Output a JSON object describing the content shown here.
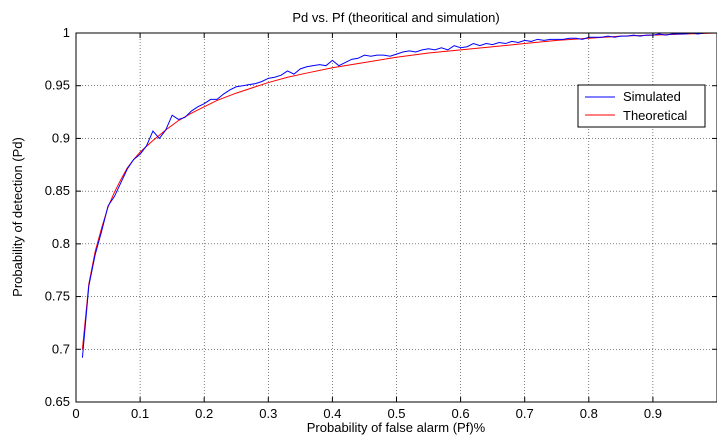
{
  "chart_data": {
    "type": "line",
    "title": "Pd vs. Pf (theoritical and simulation)",
    "xlabel": "Probability of false alarm (Pf)%",
    "ylabel": "Probability of detection (Pd)",
    "xlim": [
      0,
      1
    ],
    "ylim": [
      0.65,
      1
    ],
    "xticks": [
      0,
      0.1,
      0.2,
      0.3,
      0.4,
      0.5,
      0.6,
      0.7,
      0.8,
      0.9
    ],
    "xtick_labels": [
      "0",
      "0.1",
      "0.2",
      "0.3",
      "0.4",
      "0.5",
      "0.6",
      "0.7",
      "0.8",
      "0.9"
    ],
    "yticks": [
      0.65,
      0.7,
      0.75,
      0.8,
      0.85,
      0.9,
      0.95,
      1
    ],
    "ytick_labels": [
      "0.65",
      "0.7",
      "0.75",
      "0.8",
      "0.85",
      "0.9",
      "0.95",
      "1"
    ],
    "grid": true,
    "legend_position": "right",
    "series": [
      {
        "name": "Simulated",
        "color": "#0000ff",
        "x": [
          0.01,
          0.02,
          0.03,
          0.04,
          0.05,
          0.06,
          0.07,
          0.08,
          0.09,
          0.1,
          0.11,
          0.12,
          0.13,
          0.14,
          0.15,
          0.16,
          0.17,
          0.18,
          0.19,
          0.2,
          0.21,
          0.22,
          0.23,
          0.24,
          0.25,
          0.26,
          0.27,
          0.28,
          0.29,
          0.3,
          0.31,
          0.32,
          0.33,
          0.34,
          0.35,
          0.36,
          0.37,
          0.38,
          0.39,
          0.4,
          0.41,
          0.42,
          0.43,
          0.44,
          0.45,
          0.46,
          0.47,
          0.48,
          0.49,
          0.5,
          0.51,
          0.52,
          0.53,
          0.54,
          0.55,
          0.56,
          0.57,
          0.58,
          0.59,
          0.6,
          0.61,
          0.62,
          0.63,
          0.64,
          0.65,
          0.66,
          0.67,
          0.68,
          0.69,
          0.7,
          0.71,
          0.72,
          0.73,
          0.74,
          0.75,
          0.76,
          0.77,
          0.78,
          0.79,
          0.8,
          0.81,
          0.82,
          0.83,
          0.84,
          0.85,
          0.86,
          0.87,
          0.88,
          0.89,
          0.9,
          0.91,
          0.92,
          0.93,
          0.94,
          0.95,
          0.96,
          0.97,
          0.98,
          0.99,
          1.0
        ],
        "values": [
          0.692,
          0.76,
          0.79,
          0.812,
          0.836,
          0.845,
          0.858,
          0.871,
          0.88,
          0.885,
          0.893,
          0.907,
          0.9,
          0.908,
          0.922,
          0.918,
          0.92,
          0.926,
          0.93,
          0.933,
          0.937,
          0.937,
          0.942,
          0.946,
          0.949,
          0.95,
          0.951,
          0.952,
          0.954,
          0.957,
          0.958,
          0.96,
          0.964,
          0.961,
          0.966,
          0.968,
          0.969,
          0.97,
          0.969,
          0.974,
          0.969,
          0.972,
          0.975,
          0.976,
          0.979,
          0.978,
          0.979,
          0.979,
          0.978,
          0.98,
          0.982,
          0.983,
          0.982,
          0.984,
          0.985,
          0.984,
          0.986,
          0.984,
          0.988,
          0.986,
          0.987,
          0.99,
          0.988,
          0.99,
          0.989,
          0.991,
          0.99,
          0.992,
          0.991,
          0.993,
          0.992,
          0.994,
          0.993,
          0.994,
          0.994,
          0.994,
          0.995,
          0.995,
          0.994,
          0.996,
          0.996,
          0.996,
          0.997,
          0.996,
          0.997,
          0.997,
          0.998,
          0.997,
          0.998,
          0.998,
          0.999,
          0.998,
          0.999,
          0.999,
          0.999,
          1.0,
          0.999,
          1.0,
          1.0,
          1.0
        ]
      },
      {
        "name": "Theoretical",
        "color": "#ff0000",
        "x": [
          0.01,
          0.02,
          0.03,
          0.04,
          0.05,
          0.06,
          0.07,
          0.08,
          0.09,
          0.1,
          0.12,
          0.14,
          0.16,
          0.18,
          0.2,
          0.22,
          0.25,
          0.28,
          0.3,
          0.33,
          0.36,
          0.4,
          0.45,
          0.5,
          0.55,
          0.6,
          0.65,
          0.7,
          0.75,
          0.8,
          0.85,
          0.9,
          0.95,
          1.0
        ],
        "values": [
          0.7,
          0.762,
          0.793,
          0.815,
          0.835,
          0.849,
          0.861,
          0.872,
          0.88,
          0.887,
          0.898,
          0.908,
          0.917,
          0.924,
          0.93,
          0.936,
          0.943,
          0.949,
          0.953,
          0.958,
          0.962,
          0.967,
          0.972,
          0.977,
          0.981,
          0.984,
          0.987,
          0.99,
          0.993,
          0.995,
          0.997,
          0.998,
          0.999,
          1.0
        ]
      }
    ]
  }
}
